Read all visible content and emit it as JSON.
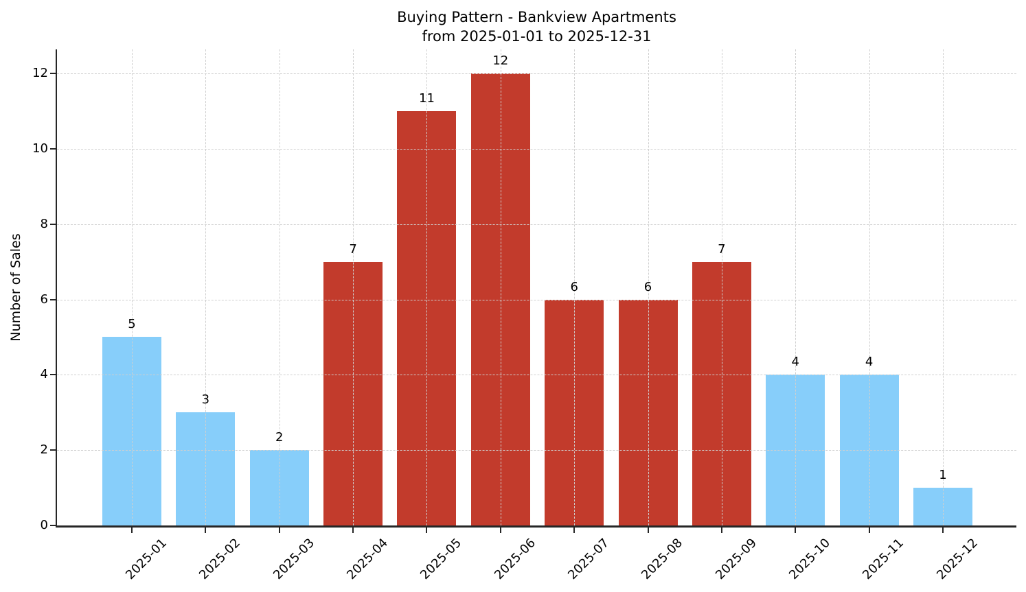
{
  "chart_data": {
    "type": "bar",
    "title": "Buying Pattern - Bankview Apartments",
    "subtitle": "from 2025-01-01 to 2025-12-31",
    "xlabel": "",
    "ylabel": "Number of Sales",
    "categories": [
      "2025-01",
      "2025-02",
      "2025-03",
      "2025-04",
      "2025-05",
      "2025-06",
      "2025-07",
      "2025-08",
      "2025-09",
      "2025-10",
      "2025-11",
      "2025-12"
    ],
    "values": [
      5,
      3,
      2,
      7,
      11,
      12,
      6,
      6,
      7,
      4,
      4,
      1
    ],
    "bar_colors": [
      "#87CEFA",
      "#87CEFA",
      "#87CEFA",
      "#C23B2C",
      "#C23B2C",
      "#C23B2C",
      "#C23B2C",
      "#C23B2C",
      "#C23B2C",
      "#87CEFA",
      "#87CEFA",
      "#87CEFA"
    ],
    "colors": {
      "normal_bar": "#87CEFA",
      "highlight_bar": "#C23B2C",
      "grid": "#cfcfcf",
      "axis": "#262626",
      "text": "#000000",
      "background": "#ffffff"
    },
    "yticks": [
      0,
      2,
      4,
      6,
      8,
      10,
      12
    ],
    "ylim": [
      0,
      12.64
    ],
    "grid": "dashed",
    "grid_above_bars": true,
    "value_labels": true,
    "xtick_rotation_deg": 45,
    "legend": null
  }
}
